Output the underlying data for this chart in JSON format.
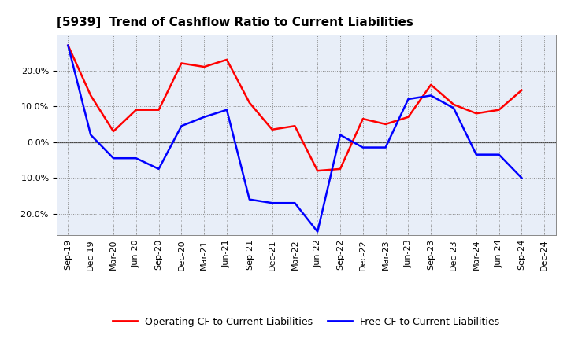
{
  "title": "[5939]  Trend of Cashflow Ratio to Current Liabilities",
  "x_labels": [
    "Sep-19",
    "Dec-19",
    "Mar-20",
    "Jun-20",
    "Sep-20",
    "Dec-20",
    "Mar-21",
    "Jun-21",
    "Sep-21",
    "Dec-21",
    "Mar-22",
    "Jun-22",
    "Sep-22",
    "Dec-22",
    "Mar-23",
    "Jun-23",
    "Sep-23",
    "Dec-23",
    "Mar-24",
    "Jun-24",
    "Sep-24",
    "Dec-24"
  ],
  "operating_cf": [
    27.0,
    13.0,
    3.0,
    9.0,
    9.0,
    22.0,
    21.0,
    23.0,
    11.0,
    3.5,
    4.5,
    -8.0,
    -7.5,
    6.5,
    5.0,
    7.0,
    16.0,
    10.5,
    8.0,
    9.0,
    14.5,
    null
  ],
  "free_cf": [
    27.0,
    2.0,
    -4.5,
    -4.5,
    -7.5,
    4.5,
    7.0,
    9.0,
    -16.0,
    -17.0,
    -17.0,
    -25.0,
    2.0,
    -1.5,
    -1.5,
    12.0,
    13.0,
    9.5,
    -3.5,
    -3.5,
    -10.0,
    null
  ],
  "operating_color": "#FF0000",
  "free_color": "#0000FF",
  "ylim": [
    -26,
    30
  ],
  "yticks": [
    -20,
    -10,
    0,
    10,
    20
  ],
  "legend_labels": [
    "Operating CF to Current Liabilities",
    "Free CF to Current Liabilities"
  ],
  "background_color": "#FFFFFF",
  "plot_bg_color": "#E8EEF8",
  "grid_color": "#888888",
  "line_width": 1.8,
  "title_fontsize": 11,
  "tick_fontsize": 8,
  "legend_fontsize": 9
}
